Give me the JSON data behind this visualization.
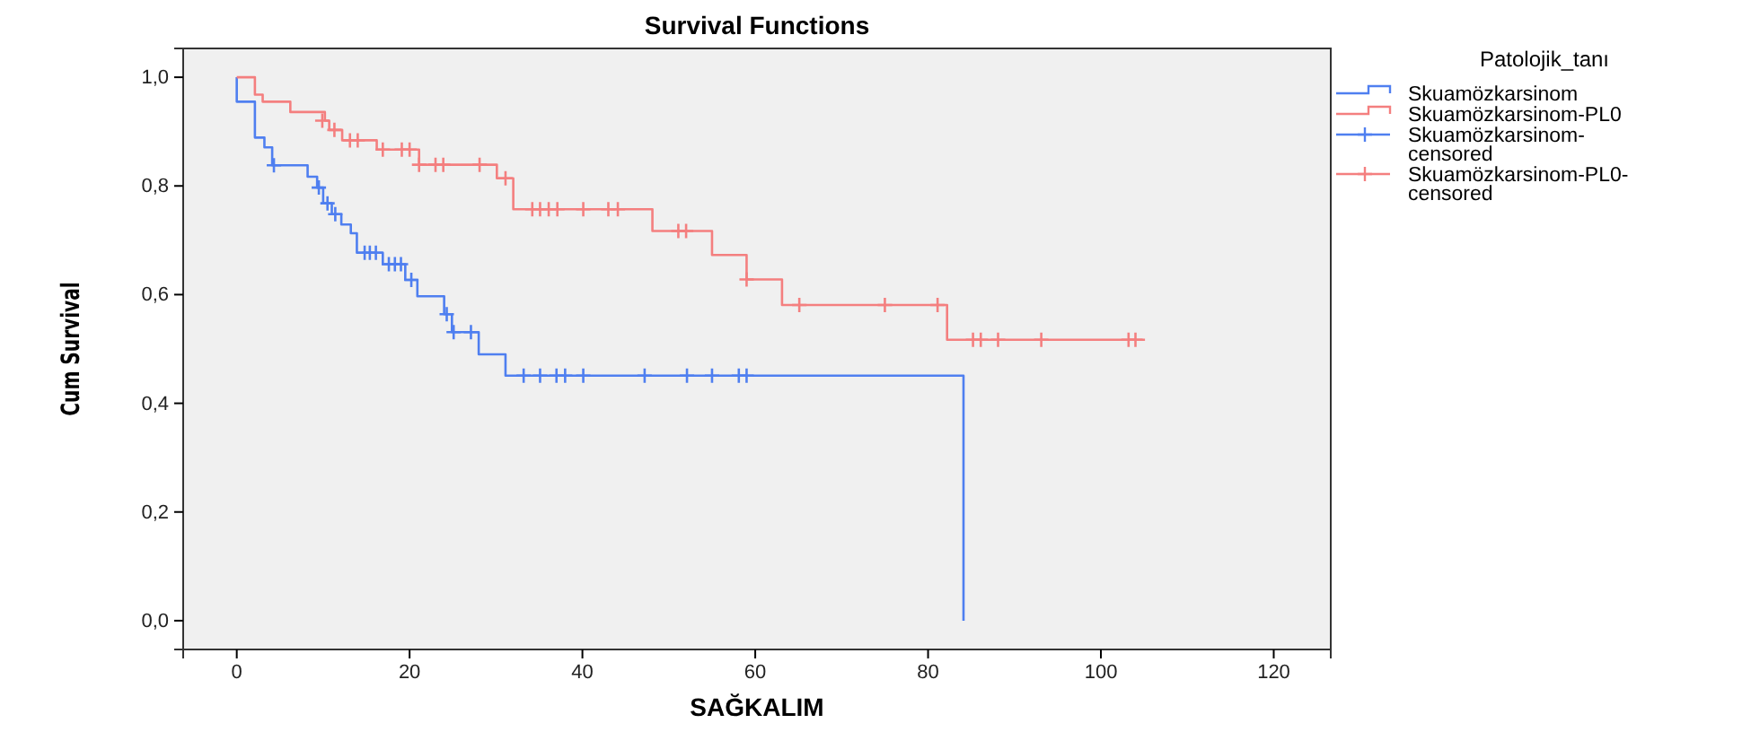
{
  "chart_data": {
    "type": "step",
    "title": "Survival Functions",
    "xlabel": "SAĞKALIM",
    "ylabel": "Cum Survival",
    "legend_title": "Patolojik_tanı",
    "legend": "right",
    "grid": false,
    "xlim": [
      -6.2,
      126.6
    ],
    "xticks": [
      0,
      20,
      40,
      60,
      80,
      100,
      120
    ],
    "ylim": [
      -0.053,
      1.053
    ],
    "yticks": [
      {
        "value": 0,
        "label": "0,0"
      },
      {
        "value": 0.2,
        "label": "0,2"
      },
      {
        "value": 0.4,
        "label": "0,4"
      },
      {
        "value": 0.6,
        "label": "0,6"
      },
      {
        "value": 0.8,
        "label": "0,8"
      },
      {
        "value": 1,
        "label": "1,0"
      }
    ],
    "series": [
      {
        "name": "Skuamözkarsinom",
        "marker": "none",
        "color": "#4f7ff0",
        "x": [
          0,
          0,
          2.1,
          3.2,
          4.1,
          8.2,
          9.3,
          10.0,
          11.0,
          12.1,
          13.2,
          13.9,
          16.9,
          19.5,
          20.9,
          24.0,
          24.9,
          28.0,
          31.1,
          84.1
        ],
        "values": [
          1.0,
          0.955,
          0.889,
          0.871,
          0.838,
          0.817,
          0.797,
          0.768,
          0.748,
          0.729,
          0.713,
          0.677,
          0.656,
          0.627,
          0.597,
          0.564,
          0.531,
          0.49,
          0.451,
          0.0
        ]
      },
      {
        "name": "Skuamözkarsinom-PL0",
        "marker": "none",
        "color": "#f47f7f",
        "x": [
          0,
          2.1,
          3.0,
          6.2,
          10.2,
          10.7,
          12.2,
          16.2,
          21.1,
          30.1,
          32.0,
          48.1,
          55.0,
          59.0,
          63.1,
          82.2,
          105.1
        ],
        "values": [
          1.0,
          0.968,
          0.955,
          0.936,
          0.92,
          0.903,
          0.884,
          0.867,
          0.839,
          0.814,
          0.757,
          0.717,
          0.673,
          0.628,
          0.581,
          0.517,
          0.517
        ]
      },
      {
        "name": "Skuamözkarsinom-censored",
        "type": "scatter",
        "marker": "cross",
        "color": "#4f7ff0",
        "x": [
          4.3,
          9.5,
          10.5,
          11.4,
          14.8,
          15.4,
          16.1,
          17.6,
          18.3,
          19.0,
          20.2,
          24.3,
          25.1,
          27.1,
          33.2,
          35.1,
          37.0,
          38.0,
          40.1,
          47.2,
          52.1,
          55.0,
          58.1,
          59.0
        ],
        "values": [
          0.838,
          0.797,
          0.768,
          0.748,
          0.677,
          0.677,
          0.677,
          0.656,
          0.656,
          0.656,
          0.627,
          0.564,
          0.531,
          0.531,
          0.451,
          0.451,
          0.451,
          0.451,
          0.451,
          0.451,
          0.451,
          0.451,
          0.451,
          0.451
        ]
      },
      {
        "name": "Skuamözkarsinom-PL0-censored",
        "type": "scatter",
        "marker": "cross",
        "color": "#f47f7f",
        "x": [
          9.9,
          11.3,
          13.1,
          14.0,
          16.9,
          19.1,
          20.0,
          21.1,
          23.0,
          23.9,
          28.1,
          31.1,
          34.2,
          35.1,
          36.1,
          37.1,
          40.1,
          43.0,
          44.1,
          51.1,
          52.0,
          59.0,
          65.1,
          75.0,
          81.1,
          85.2,
          86.1,
          88.1,
          93.1,
          103.2,
          104.0
        ],
        "values": [
          0.92,
          0.903,
          0.884,
          0.884,
          0.867,
          0.867,
          0.867,
          0.839,
          0.839,
          0.839,
          0.839,
          0.814,
          0.757,
          0.757,
          0.757,
          0.757,
          0.757,
          0.757,
          0.757,
          0.717,
          0.717,
          0.628,
          0.581,
          0.581,
          0.581,
          0.517,
          0.517,
          0.517,
          0.517,
          0.517,
          0.517
        ]
      }
    ]
  }
}
